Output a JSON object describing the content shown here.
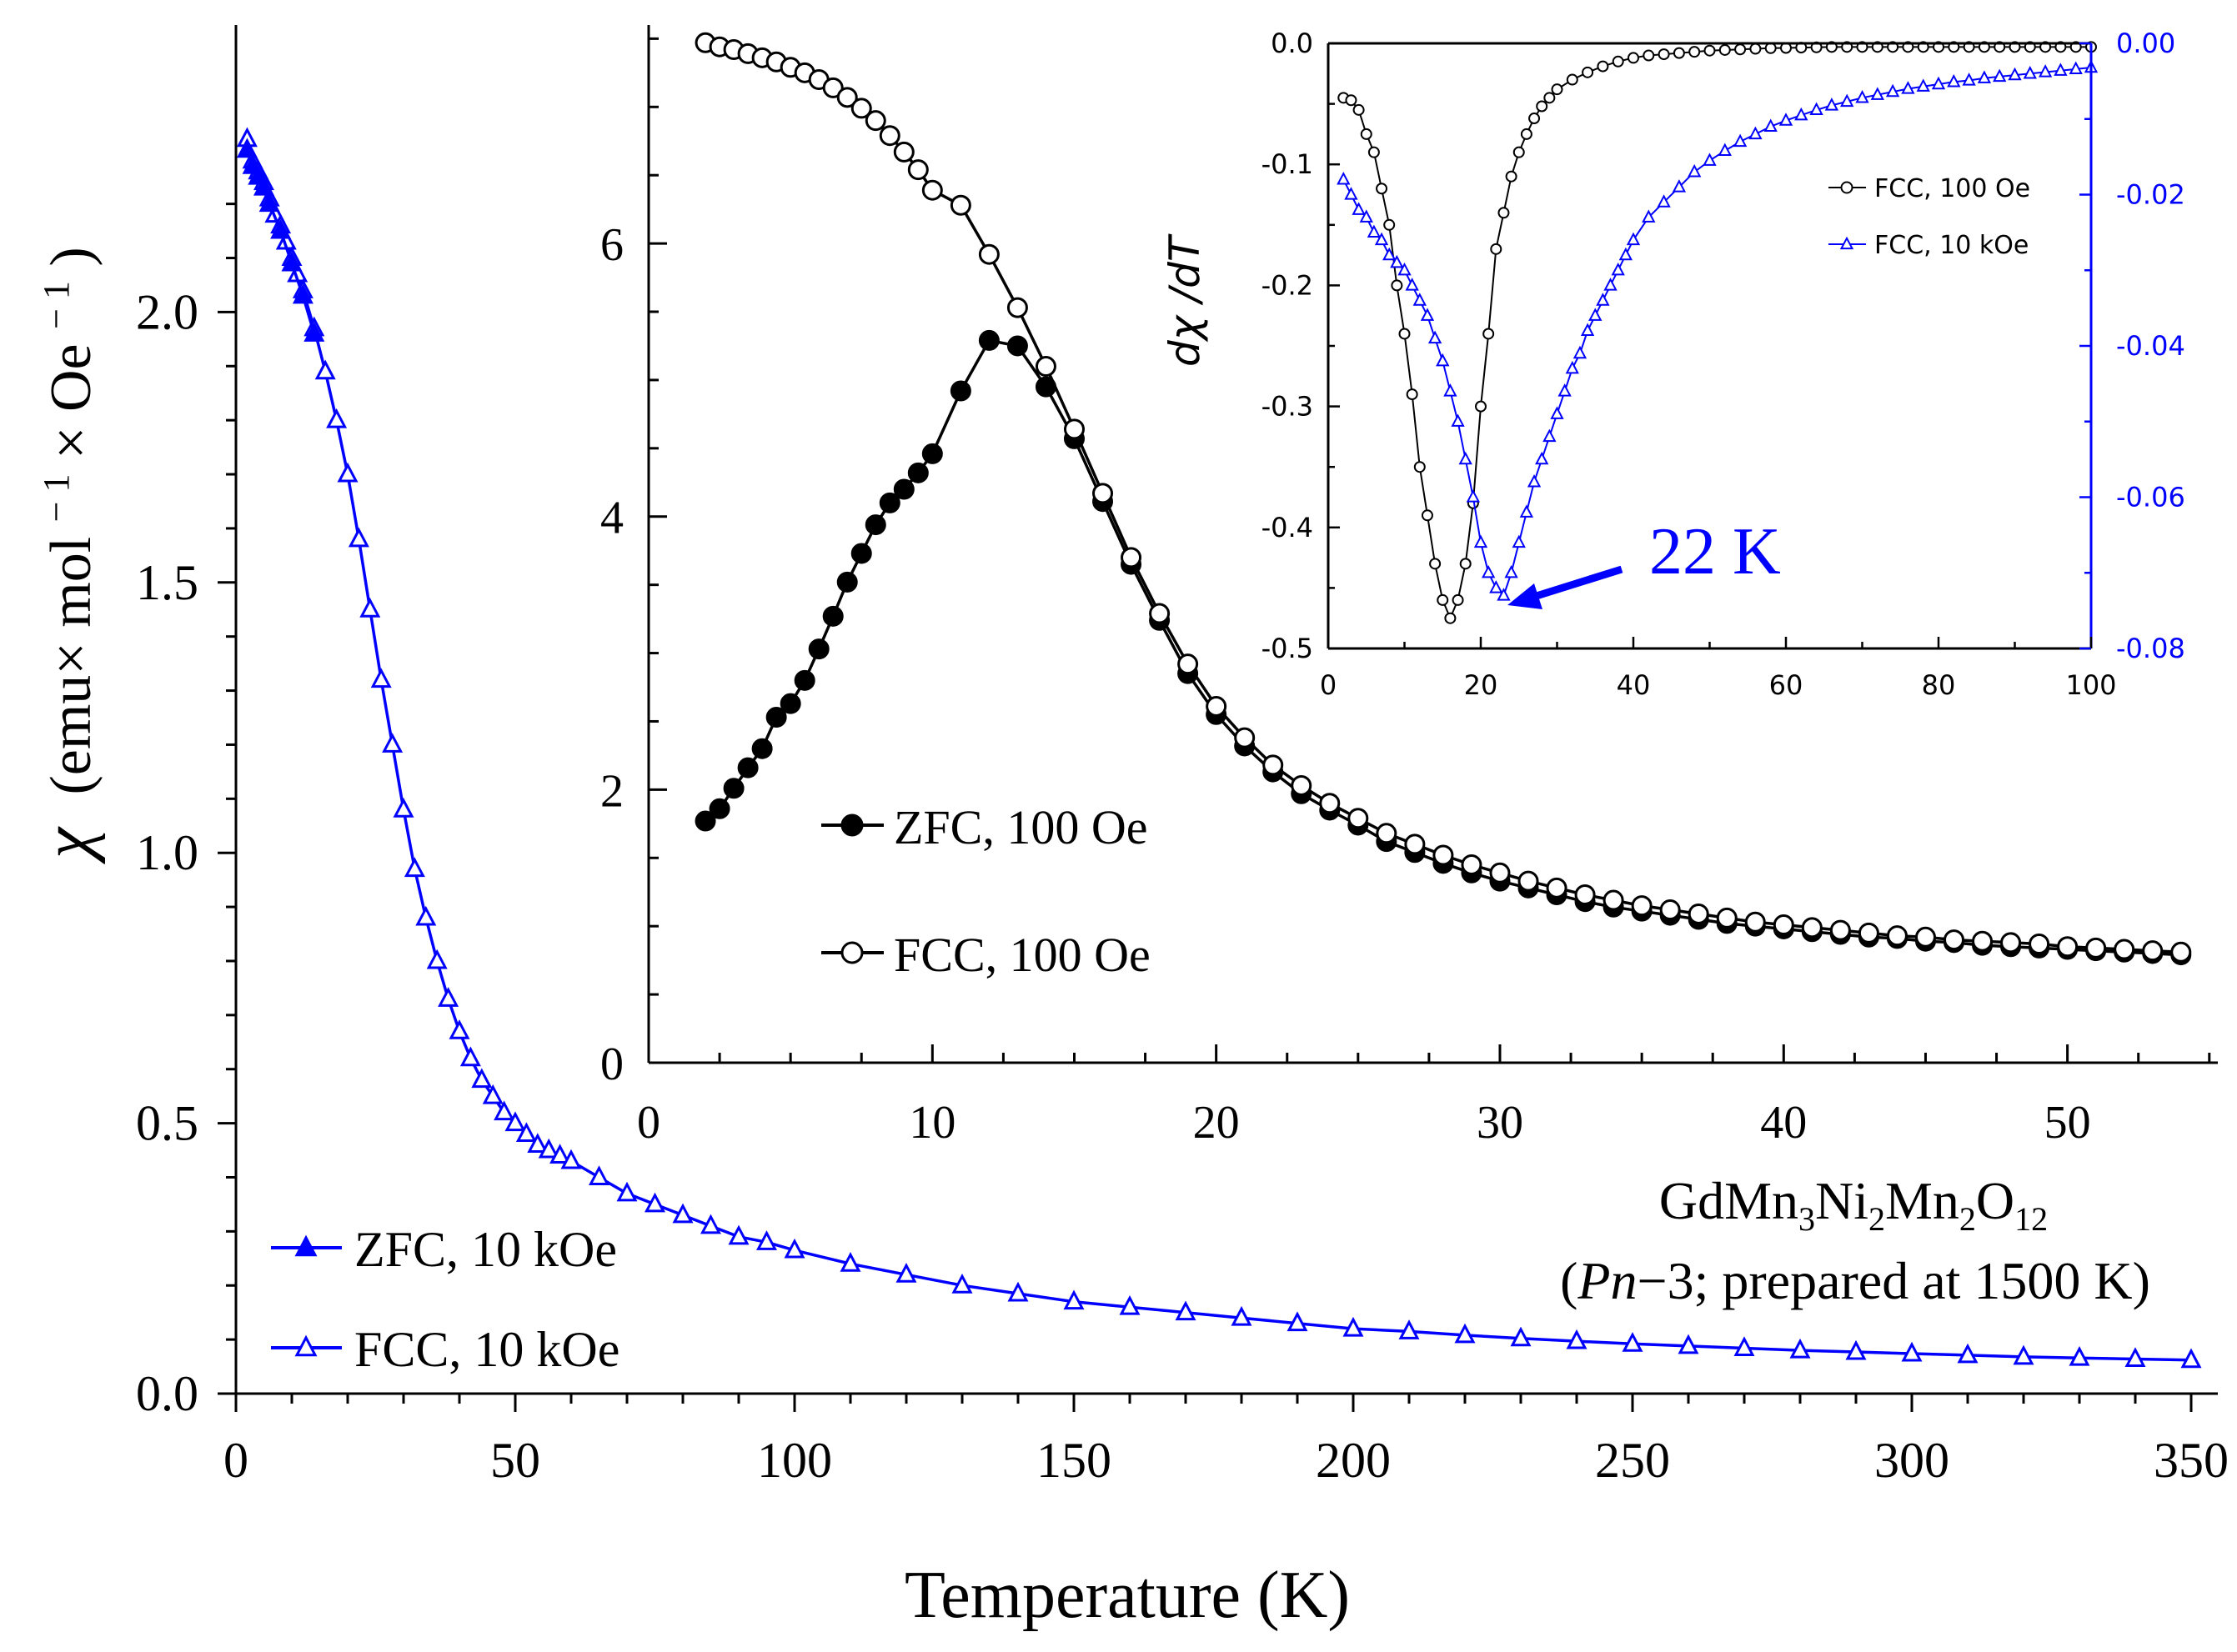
{
  "chart_data": [
    {
      "type": "line",
      "role": "main",
      "xlabel": "Temperature (K)",
      "ylabel": "χ (emu× mol⁻¹× Oe⁻¹)",
      "ylabel_parts": [
        "χ",
        "(emu× mol",
        "− 1",
        "× Oe",
        "− 1",
        ")"
      ],
      "xlim": [
        0,
        355
      ],
      "ylim": [
        0,
        2.5
      ],
      "xticks": [
        0,
        50,
        100,
        150,
        200,
        250,
        300,
        350
      ],
      "xtick_labels": [
        "0",
        "50",
        "100",
        "150",
        "200",
        "250",
        "300",
        "350"
      ],
      "yticks": [
        0,
        0.5,
        1.0,
        1.5,
        2.0
      ],
      "ytick_labels": [
        "0.0",
        "0.5",
        "1.0",
        "1.5",
        "2.0"
      ],
      "legend_position": "bottom-left",
      "series": [
        {
          "name": "ZFC, 10 kOe",
          "marker": "filled-triangle",
          "color": "#0000ff",
          "x": [
            2,
            3,
            4,
            5,
            6,
            8,
            10,
            12,
            14
          ],
          "y": [
            2.3,
            2.27,
            2.25,
            2.23,
            2.2,
            2.15,
            2.09,
            2.03,
            1.96
          ]
        },
        {
          "name": "FCC, 10 kOe",
          "marker": "open-triangle",
          "color": "#0000ff",
          "x": [
            2,
            3,
            4,
            5,
            6,
            7,
            8,
            9,
            10,
            11,
            12,
            14,
            16,
            18,
            20,
            22,
            24,
            26,
            28,
            30,
            32,
            34,
            36,
            38,
            40,
            42,
            44,
            46,
            48,
            50,
            52,
            54,
            56,
            58,
            60,
            65,
            70,
            75,
            80,
            85,
            90,
            95,
            100,
            110,
            120,
            130,
            140,
            150,
            160,
            170,
            180,
            190,
            200,
            210,
            220,
            230,
            240,
            250,
            260,
            270,
            280,
            290,
            300,
            310,
            320,
            330,
            340,
            350
          ],
          "y": [
            2.32,
            2.28,
            2.26,
            2.24,
            2.21,
            2.18,
            2.16,
            2.13,
            2.1,
            2.07,
            2.04,
            1.97,
            1.89,
            1.8,
            1.7,
            1.58,
            1.45,
            1.32,
            1.2,
            1.08,
            0.97,
            0.88,
            0.8,
            0.73,
            0.67,
            0.62,
            0.58,
            0.55,
            0.52,
            0.5,
            0.48,
            0.46,
            0.45,
            0.44,
            0.43,
            0.4,
            0.37,
            0.35,
            0.33,
            0.31,
            0.29,
            0.28,
            0.265,
            0.24,
            0.22,
            0.2,
            0.185,
            0.17,
            0.16,
            0.15,
            0.14,
            0.13,
            0.12,
            0.115,
            0.108,
            0.102,
            0.097,
            0.092,
            0.088,
            0.084,
            0.08,
            0.077,
            0.074,
            0.071,
            0.068,
            0.066,
            0.064,
            0.062
          ]
        }
      ],
      "annotation": {
        "formula": "GdMn3Ni2Mn2O12",
        "formula_parts": [
          "GdMn",
          "3",
          "Ni",
          "2",
          "Mn",
          "2",
          "O",
          "12"
        ],
        "caption_parts": [
          "(",
          "Pn",
          "−3; prepared at 1500 K)"
        ]
      }
    },
    {
      "type": "line",
      "role": "inset-1",
      "xlim": [
        0,
        55
      ],
      "ylim": [
        0,
        7.6
      ],
      "xticks": [
        0,
        10,
        20,
        30,
        40,
        50
      ],
      "xtick_labels": [
        "0",
        "10",
        "20",
        "30",
        "40",
        "50"
      ],
      "yticks": [
        0,
        2,
        4,
        6
      ],
      "ytick_labels": [
        "0",
        "2",
        "4",
        "6"
      ],
      "legend_position": "center-left",
      "series": [
        {
          "name": "ZFC, 100 Oe",
          "marker": "filled-circle",
          "color": "#000000",
          "x": [
            2,
            2.5,
            3,
            3.5,
            4,
            4.5,
            5,
            5.5,
            6,
            6.5,
            7,
            7.5,
            8,
            8.5,
            9,
            9.5,
            10,
            11,
            12,
            13,
            14,
            15,
            16,
            17,
            18,
            19,
            20,
            21,
            22,
            23,
            24,
            25,
            26,
            27,
            28,
            29,
            30,
            31,
            32,
            33,
            34,
            35,
            36,
            37,
            38,
            39,
            40,
            41,
            42,
            43,
            44,
            45,
            46,
            47,
            48,
            49,
            50,
            51,
            52,
            53,
            54
          ],
          "y": [
            1.77,
            1.86,
            2.01,
            2.16,
            2.3,
            2.53,
            2.63,
            2.8,
            3.03,
            3.27,
            3.52,
            3.73,
            3.94,
            4.1,
            4.2,
            4.32,
            4.46,
            4.92,
            5.29,
            5.25,
            4.95,
            4.57,
            4.11,
            3.65,
            3.24,
            2.85,
            2.55,
            2.32,
            2.13,
            1.97,
            1.85,
            1.74,
            1.62,
            1.54,
            1.46,
            1.39,
            1.33,
            1.28,
            1.23,
            1.18,
            1.14,
            1.11,
            1.08,
            1.05,
            1.02,
            1.0,
            0.98,
            0.96,
            0.94,
            0.92,
            0.91,
            0.89,
            0.88,
            0.86,
            0.85,
            0.84,
            0.83,
            0.82,
            0.81,
            0.8,
            0.79
          ]
        },
        {
          "name": "FCC, 100 Oe",
          "marker": "open-circle",
          "color": "#000000",
          "x": [
            2,
            2.5,
            3,
            3.5,
            4,
            4.5,
            5,
            5.5,
            6,
            6.5,
            7,
            7.5,
            8,
            8.5,
            9,
            9.5,
            10,
            11,
            12,
            13,
            14,
            15,
            16,
            17,
            18,
            19,
            20,
            21,
            22,
            23,
            24,
            25,
            26,
            27,
            28,
            29,
            30,
            31,
            32,
            33,
            34,
            35,
            36,
            37,
            38,
            39,
            40,
            41,
            42,
            43,
            44,
            45,
            46,
            47,
            48,
            49,
            50,
            51,
            52,
            53,
            54
          ],
          "y": [
            7.47,
            7.44,
            7.42,
            7.39,
            7.36,
            7.33,
            7.29,
            7.25,
            7.2,
            7.14,
            7.07,
            6.99,
            6.9,
            6.79,
            6.67,
            6.54,
            6.39,
            6.28,
            5.92,
            5.53,
            5.1,
            4.64,
            4.17,
            3.7,
            3.29,
            2.92,
            2.61,
            2.38,
            2.18,
            2.03,
            1.9,
            1.79,
            1.68,
            1.6,
            1.52,
            1.45,
            1.39,
            1.33,
            1.28,
            1.23,
            1.19,
            1.15,
            1.12,
            1.09,
            1.06,
            1.03,
            1.01,
            0.99,
            0.97,
            0.95,
            0.93,
            0.92,
            0.9,
            0.89,
            0.88,
            0.87,
            0.85,
            0.84,
            0.83,
            0.82,
            0.81
          ]
        }
      ]
    },
    {
      "type": "line",
      "role": "inset-2",
      "ylabel": "dχ /dT",
      "ylabel_parts": [
        "d",
        "χ",
        " /d",
        "T"
      ],
      "xlim": [
        0,
        100
      ],
      "ylim_left": [
        -0.5,
        0.0
      ],
      "ylim_right": [
        -0.08,
        0.0
      ],
      "xticks": [
        0,
        20,
        40,
        60,
        80,
        100
      ],
      "xtick_labels": [
        "0",
        "20",
        "40",
        "60",
        "80",
        "100"
      ],
      "yticks_left": [
        0,
        -0.1,
        -0.2,
        -0.3,
        -0.4,
        -0.5
      ],
      "ytick_labels_left": [
        "0.0",
        "-0.1",
        "-0.2",
        "-0.3",
        "-0.4",
        "-0.5"
      ],
      "yticks_right": [
        0,
        -0.02,
        -0.04,
        -0.06,
        -0.08
      ],
      "ytick_labels_right": [
        "0.00",
        "-0.02",
        "-0.04",
        "-0.06",
        "-0.08"
      ],
      "right_axis_color": "#0000ff",
      "legend_position": "top-right",
      "series": [
        {
          "name": "FCC, 100 Oe",
          "marker": "open-circle",
          "color": "#000000",
          "axis": "left",
          "x": [
            2,
            3,
            4,
            5,
            6,
            7,
            8,
            9,
            10,
            11,
            12,
            13,
            14,
            15,
            16,
            17,
            18,
            19,
            20,
            21,
            22,
            23,
            24,
            25,
            26,
            27,
            28,
            29,
            30,
            32,
            34,
            36,
            38,
            40,
            42,
            44,
            46,
            48,
            50,
            52,
            54,
            56,
            58,
            60,
            62,
            64,
            66,
            68,
            70,
            72,
            74,
            76,
            78,
            80,
            82,
            84,
            86,
            88,
            90,
            92,
            94,
            96,
            98,
            100
          ],
          "y": [
            -0.045,
            -0.047,
            -0.055,
            -0.075,
            -0.09,
            -0.12,
            -0.15,
            -0.2,
            -0.24,
            -0.29,
            -0.35,
            -0.39,
            -0.43,
            -0.46,
            -0.475,
            -0.46,
            -0.43,
            -0.38,
            -0.3,
            -0.24,
            -0.17,
            -0.14,
            -0.11,
            -0.09,
            -0.075,
            -0.062,
            -0.052,
            -0.045,
            -0.038,
            -0.03,
            -0.024,
            -0.019,
            -0.015,
            -0.012,
            -0.01,
            -0.009,
            -0.008,
            -0.007,
            -0.006,
            -0.0055,
            -0.005,
            -0.0045,
            -0.004,
            -0.0038,
            -0.0035,
            -0.0033,
            -0.003,
            -0.003,
            -0.003,
            -0.003,
            -0.003,
            -0.003,
            -0.003,
            -0.003,
            -0.003,
            -0.003,
            -0.003,
            -0.003,
            -0.003,
            -0.003,
            -0.003,
            -0.003,
            -0.003,
            -0.003
          ]
        },
        {
          "name": "FCC, 10 kOe",
          "marker": "open-triangle",
          "color": "#0000ff",
          "axis": "right",
          "x": [
            2,
            3,
            4,
            5,
            6,
            7,
            8,
            9,
            10,
            11,
            12,
            13,
            14,
            15,
            16,
            17,
            18,
            19,
            20,
            21,
            22,
            23,
            24,
            25,
            26,
            27,
            28,
            29,
            30,
            31,
            32,
            33,
            34,
            35,
            36,
            37,
            38,
            39,
            40,
            42,
            44,
            46,
            48,
            50,
            52,
            54,
            56,
            58,
            60,
            62,
            64,
            66,
            68,
            70,
            72,
            74,
            76,
            78,
            80,
            82,
            84,
            86,
            88,
            90,
            92,
            94,
            96,
            98,
            100
          ],
          "y": [
            -0.018,
            -0.02,
            -0.022,
            -0.023,
            -0.025,
            -0.026,
            -0.028,
            -0.029,
            -0.03,
            -0.032,
            -0.034,
            -0.036,
            -0.039,
            -0.042,
            -0.046,
            -0.05,
            -0.055,
            -0.06,
            -0.066,
            -0.07,
            -0.072,
            -0.073,
            -0.07,
            -0.066,
            -0.062,
            -0.058,
            -0.055,
            -0.052,
            -0.049,
            -0.046,
            -0.043,
            -0.041,
            -0.038,
            -0.036,
            -0.034,
            -0.032,
            -0.03,
            -0.028,
            -0.026,
            -0.023,
            -0.021,
            -0.019,
            -0.017,
            -0.0155,
            -0.0142,
            -0.013,
            -0.012,
            -0.011,
            -0.0102,
            -0.0095,
            -0.0088,
            -0.0082,
            -0.0077,
            -0.0072,
            -0.0068,
            -0.0064,
            -0.006,
            -0.0057,
            -0.0054,
            -0.0051,
            -0.0049,
            -0.0046,
            -0.0044,
            -0.0042,
            -0.004,
            -0.0038,
            -0.0036,
            -0.0034,
            -0.0032
          ]
        }
      ],
      "annotation": {
        "text": "22 K",
        "color": "#0000ff",
        "points_to": [
          22,
          -0.073
        ]
      }
    }
  ]
}
